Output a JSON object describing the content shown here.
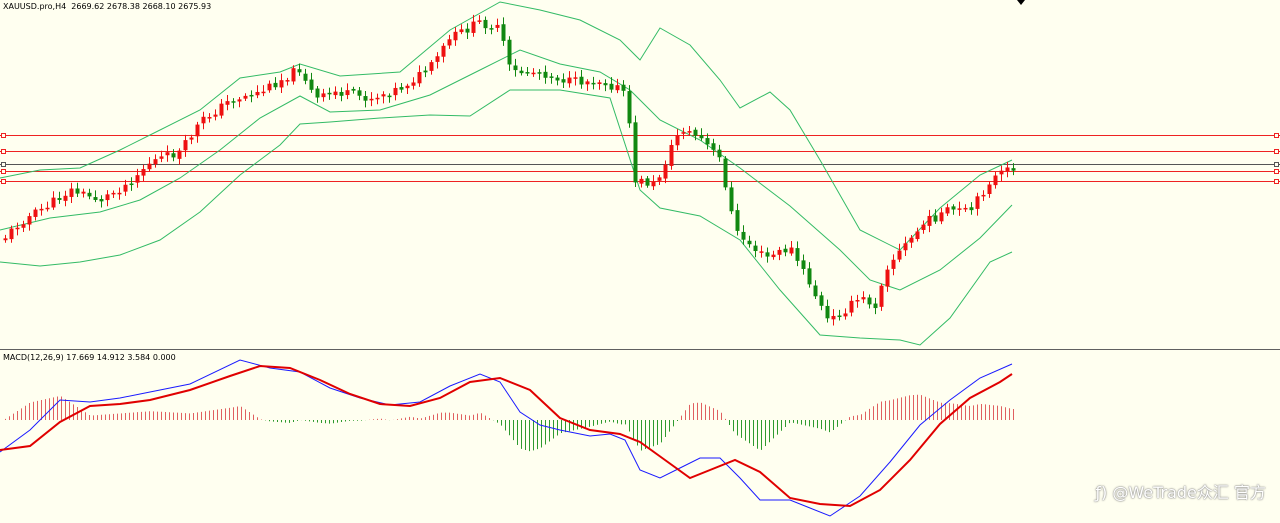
{
  "price_chart": {
    "symbol_label": "XAUUSD.pro,H4",
    "ohlc_label": "2669.62 2678.38 2668.10 2675.93",
    "bull_color": "#ee1111",
    "bear_color": "#118811",
    "band_color": "#33bb66"
  },
  "macd": {
    "label": "MACD(12,26,9) 17.669 14.912 3.584 0.000",
    "macd_line_color": "#1a1aff",
    "signal_line_color": "#e00000",
    "hist_pos_color": "#e06060",
    "hist_neg_color": "#2e9a2e"
  },
  "horizontal_lines": [
    {
      "color": "#ee2222",
      "level": "red"
    },
    {
      "color": "#ee2222",
      "level": "red"
    },
    {
      "color": "#555555",
      "level": "current"
    },
    {
      "color": "#ee2222",
      "level": "red"
    },
    {
      "color": "#ee2222",
      "level": "red"
    }
  ],
  "watermark": "ƒ) @WeTrade众汇 官方",
  "icons": {
    "shift_marker": "chart-shift-triangle-icon"
  }
}
